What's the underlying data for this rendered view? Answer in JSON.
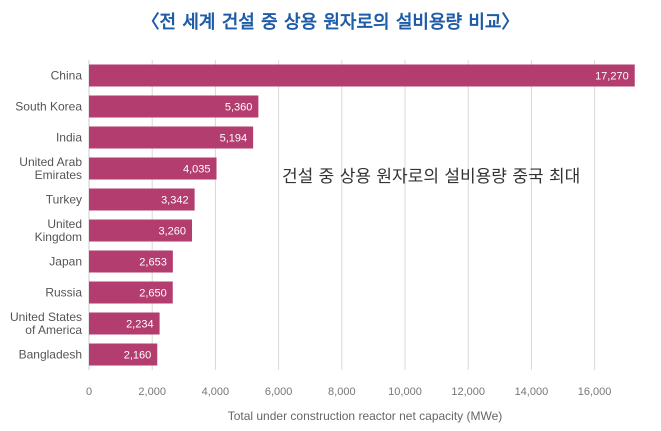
{
  "chart_data": {
    "type": "bar",
    "orientation": "horizontal",
    "title": "〈전 세계 건설 중 상용 원자로의 설비용량 비교〉",
    "xlabel": "Total under construction reactor net capacity (MWe)",
    "ylabel": "",
    "xlim": [
      0,
      17500
    ],
    "xticks": [
      0,
      2000,
      4000,
      6000,
      8000,
      10000,
      12000,
      14000,
      16000
    ],
    "tick_labels": [
      "0",
      "2,000",
      "4,000",
      "6,000",
      "8,000",
      "10,000",
      "12,000",
      "14,000",
      "16,000"
    ],
    "grid": "vertical",
    "bar_color": "#b23d6e",
    "categories": [
      [
        "China"
      ],
      [
        "South Korea"
      ],
      [
        "India"
      ],
      [
        "United Arab",
        "Emirates"
      ],
      [
        "Turkey"
      ],
      [
        "United",
        "Kingdom"
      ],
      [
        "Japan"
      ],
      [
        "Russia"
      ],
      [
        "United States",
        "of America"
      ],
      [
        "Bangladesh"
      ]
    ],
    "values": [
      17270,
      5360,
      5194,
      4035,
      3342,
      3260,
      2653,
      2650,
      2234,
      2160
    ],
    "value_labels": [
      "17,270",
      "5,360",
      "5,194",
      "4,035",
      "3,342",
      "3,260",
      "2,653",
      "2,650",
      "2,234",
      "2,160"
    ],
    "annotation": "건설 중 상용 원자로의 설비용량 중국 최대"
  }
}
